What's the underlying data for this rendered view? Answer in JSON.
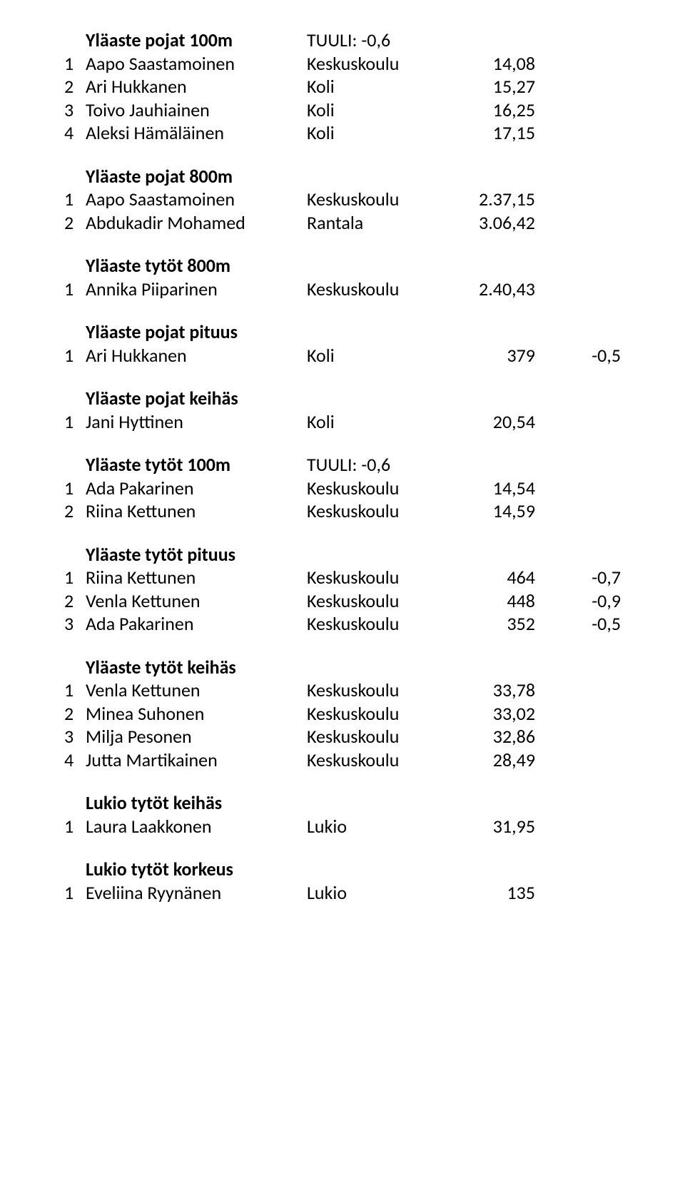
{
  "sections": [
    {
      "title": "Yläaste pojat 100m",
      "info": "TUULI: -0,6",
      "rows": [
        {
          "n": "1",
          "name": "Aapo Saastamoinen",
          "school": "Keskuskoulu",
          "res": "14,08",
          "ext": ""
        },
        {
          "n": "2",
          "name": "Ari Hukkanen",
          "school": "Koli",
          "res": "15,27",
          "ext": ""
        },
        {
          "n": "3",
          "name": "Toivo Jauhiainen",
          "school": "Koli",
          "res": "16,25",
          "ext": ""
        },
        {
          "n": "4",
          "name": "Aleksi Hämäläinen",
          "school": "Koli",
          "res": "17,15",
          "ext": ""
        }
      ]
    },
    {
      "title": "Yläaste pojat 800m",
      "info": "",
      "rows": [
        {
          "n": "1",
          "name": "Aapo Saastamoinen",
          "school": "Keskuskoulu",
          "res": "2.37,15",
          "ext": ""
        },
        {
          "n": "2",
          "name": "Abdukadir Mohamed",
          "school": "Rantala",
          "res": "3.06,42",
          "ext": ""
        }
      ]
    },
    {
      "title": "Yläaste tytöt 800m",
      "info": "",
      "rows": [
        {
          "n": "1",
          "name": "Annika Piiparinen",
          "school": "Keskuskoulu",
          "res": "2.40,43",
          "ext": ""
        }
      ]
    },
    {
      "title": "Yläaste pojat pituus",
      "info": "",
      "rows": [
        {
          "n": "1",
          "name": "Ari Hukkanen",
          "school": "Koli",
          "res": "379",
          "ext": "-0,5"
        }
      ]
    },
    {
      "title": "Yläaste pojat keihäs",
      "info": "",
      "rows": [
        {
          "n": "1",
          "name": "Jani Hyttinen",
          "school": "Koli",
          "res": "20,54",
          "ext": ""
        }
      ]
    },
    {
      "title": "Yläaste tytöt 100m",
      "info": "TUULI: -0,6",
      "rows": [
        {
          "n": "1",
          "name": "Ada Pakarinen",
          "school": "Keskuskoulu",
          "res": "14,54",
          "ext": ""
        },
        {
          "n": "2",
          "name": "Riina Kettunen",
          "school": "Keskuskoulu",
          "res": "14,59",
          "ext": ""
        }
      ]
    },
    {
      "title": "Yläaste tytöt pituus",
      "info": "",
      "rows": [
        {
          "n": "1",
          "name": "Riina Kettunen",
          "school": "Keskuskoulu",
          "res": "464",
          "ext": "-0,7"
        },
        {
          "n": "2",
          "name": "Venla Kettunen",
          "school": "Keskuskoulu",
          "res": "448",
          "ext": "-0,9"
        },
        {
          "n": "3",
          "name": "Ada Pakarinen",
          "school": "Keskuskoulu",
          "res": "352",
          "ext": "-0,5"
        }
      ]
    },
    {
      "title": "Yläaste tytöt keihäs",
      "info": "",
      "rows": [
        {
          "n": "1",
          "name": "Venla Kettunen",
          "school": "Keskuskoulu",
          "res": "33,78",
          "ext": ""
        },
        {
          "n": "2",
          "name": "Minea Suhonen",
          "school": "Keskuskoulu",
          "res": "33,02",
          "ext": ""
        },
        {
          "n": "3",
          "name": "Milja Pesonen",
          "school": "Keskuskoulu",
          "res": "32,86",
          "ext": ""
        },
        {
          "n": "4",
          "name": "Jutta Martikainen",
          "school": "Keskuskoulu",
          "res": "28,49",
          "ext": ""
        }
      ]
    },
    {
      "title": "Lukio tytöt keihäs",
      "info": "",
      "rows": [
        {
          "n": "1",
          "name": "Laura Laakkonen",
          "school": "Lukio",
          "res": "31,95",
          "ext": ""
        }
      ]
    },
    {
      "title": "Lukio tytöt korkeus",
      "info": "",
      "rows": [
        {
          "n": "1",
          "name": "Eveliina Ryynänen",
          "school": "Lukio",
          "res": "135",
          "ext": ""
        }
      ]
    }
  ]
}
